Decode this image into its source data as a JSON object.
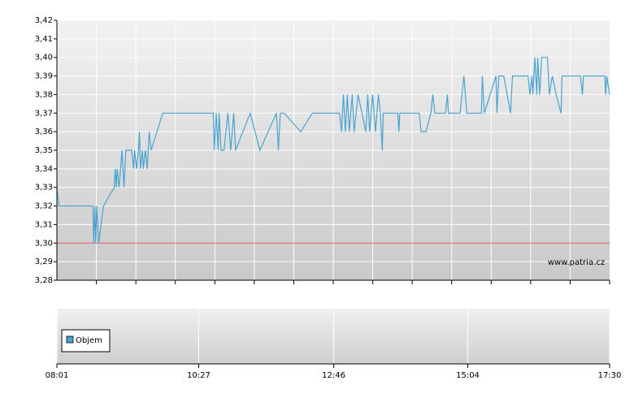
{
  "chart_data": {
    "type": "line",
    "x": [
      481,
      483,
      518,
      519,
      520,
      521,
      522,
      524,
      529,
      540,
      541,
      542,
      543,
      545,
      548,
      550,
      552,
      558,
      560,
      561,
      563,
      565,
      566,
      567,
      569,
      570,
      572,
      574,
      576,
      578,
      590,
      642,
      643,
      645,
      647,
      648,
      650,
      653,
      657,
      660,
      663,
      665,
      680,
      690,
      707,
      709,
      711,
      715,
      732,
      744,
      772,
      774,
      776,
      778,
      780,
      782,
      785,
      787,
      791,
      799,
      801,
      803,
      806,
      809,
      812,
      814,
      816,
      817,
      832,
      833,
      834,
      854,
      856,
      861,
      866,
      868,
      870,
      881,
      883,
      884,
      896,
      900,
      903,
      918,
      919,
      921,
      933,
      934,
      936,
      941,
      948,
      950,
      966,
      968,
      970,
      971,
      973,
      975,
      976,
      978,
      980,
      986,
      988,
      991,
      995,
      1000,
      1001,
      1020,
      1022,
      1023,
      1045,
      1046,
      1047,
      1050
    ],
    "values": [
      3.33,
      3.32,
      3.32,
      3.3,
      3.32,
      3.3,
      3.32,
      3.3,
      3.32,
      3.33,
      3.34,
      3.33,
      3.34,
      3.33,
      3.35,
      3.33,
      3.35,
      3.35,
      3.34,
      3.35,
      3.34,
      3.35,
      3.36,
      3.34,
      3.35,
      3.34,
      3.35,
      3.34,
      3.36,
      3.35,
      3.37,
      3.37,
      3.35,
      3.37,
      3.35,
      3.37,
      3.35,
      3.35,
      3.37,
      3.35,
      3.37,
      3.35,
      3.37,
      3.35,
      3.37,
      3.35,
      3.37,
      3.37,
      3.36,
      3.37,
      3.37,
      3.36,
      3.38,
      3.36,
      3.38,
      3.36,
      3.38,
      3.36,
      3.38,
      3.36,
      3.38,
      3.36,
      3.38,
      3.36,
      3.38,
      3.37,
      3.35,
      3.37,
      3.37,
      3.36,
      3.37,
      3.37,
      3.36,
      3.36,
      3.37,
      3.38,
      3.37,
      3.37,
      3.38,
      3.37,
      3.37,
      3.39,
      3.37,
      3.37,
      3.39,
      3.37,
      3.39,
      3.37,
      3.39,
      3.39,
      3.37,
      3.39,
      3.39,
      3.38,
      3.39,
      3.38,
      3.4,
      3.38,
      3.4,
      3.38,
      3.4,
      3.4,
      3.38,
      3.39,
      3.38,
      3.37,
      3.39,
      3.39,
      3.38,
      3.39,
      3.39,
      3.38,
      3.39,
      3.38
    ],
    "color": "#4aa3cf",
    "reference": 3.3,
    "reference_color": "#e05050",
    "xlim": [
      481,
      1050
    ],
    "xticks": [
      {
        "value": 481,
        "label": "08:01"
      },
      {
        "value": 627,
        "label": "10:27"
      },
      {
        "value": 766,
        "label": "12:46"
      },
      {
        "value": 904,
        "label": "15:04"
      },
      {
        "value": 1050,
        "label": "17:30"
      }
    ],
    "ylim": [
      3.28,
      3.42
    ],
    "yticks": [
      {
        "value": 3.28,
        "label": "3,28"
      },
      {
        "value": 3.29,
        "label": "3,29"
      },
      {
        "value": 3.3,
        "label": "3,30"
      },
      {
        "value": 3.31,
        "label": "3,31"
      },
      {
        "value": 3.32,
        "label": "3,32"
      },
      {
        "value": 3.33,
        "label": "3,33"
      },
      {
        "value": 3.34,
        "label": "3,34"
      },
      {
        "value": 3.35,
        "label": "3,35"
      },
      {
        "value": 3.36,
        "label": "3,36"
      },
      {
        "value": 3.37,
        "label": "3,37"
      },
      {
        "value": 3.38,
        "label": "3,38"
      },
      {
        "value": 3.39,
        "label": "3,39"
      },
      {
        "value": 3.4,
        "label": "3,40"
      },
      {
        "value": 3.41,
        "label": "3,41"
      },
      {
        "value": 3.42,
        "label": "3,42"
      }
    ],
    "grid": true,
    "watermark": "www.patria.cz",
    "volume_legend": "Objem"
  }
}
